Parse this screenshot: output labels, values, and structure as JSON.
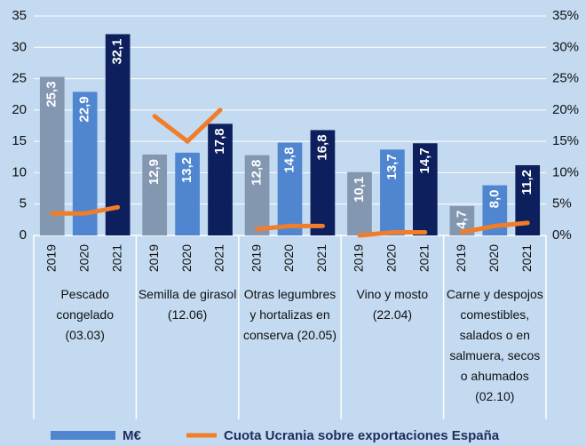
{
  "chart_data": {
    "type": "bar",
    "groups": [
      "Pescado congelado (03.03)",
      "Semilla de girasol (12.06)",
      "Otras legumbres y hortalizas en conserva (20.05)",
      "Vino y mosto (22.04)",
      "Carne y despojos comestibles, salados o en salmuera, secos o ahumados (02.10)"
    ],
    "categories": [
      "2019",
      "2020",
      "2021",
      "2019",
      "2020",
      "2021",
      "2019",
      "2020",
      "2021",
      "2019",
      "2020",
      "2021",
      "2019",
      "2020",
      "2021"
    ],
    "bar_colors": [
      "#8497b0",
      "#4f86cf",
      "#0d1f5c"
    ],
    "series": [
      {
        "name": "M€",
        "color": "#4f86cf",
        "values": [
          25.3,
          22.9,
          32.1,
          12.9,
          13.2,
          17.8,
          12.8,
          14.8,
          16.8,
          10.1,
          13.7,
          14.7,
          4.7,
          8.0,
          11.2
        ],
        "value_labels": [
          "25,3",
          "22,9",
          "32,1",
          "12,9",
          "13,2",
          "17,8",
          "12,8",
          "14,8",
          "16,8",
          "10,1",
          "13,7",
          "14,7",
          "4,7",
          "8,0",
          "11,2"
        ]
      },
      {
        "name": "Cuota Ucrania sobre exportaciones España",
        "color": "#f07d2a",
        "axis": "y2",
        "type": "line",
        "values": [
          3.5,
          3.5,
          4.5,
          19,
          15,
          20,
          1,
          1.5,
          1.5,
          0,
          0.5,
          0.5,
          0.5,
          1.5,
          2
        ]
      }
    ],
    "ylim": [
      0,
      35
    ],
    "yticks": [
      0,
      5,
      10,
      15,
      20,
      25,
      30,
      35
    ],
    "y2lim": [
      0,
      35
    ],
    "y2ticks": [
      {
        "value": 0,
        "label": "0%"
      },
      {
        "value": 5,
        "label": "5%"
      },
      {
        "value": 10,
        "label": "10%"
      },
      {
        "value": 15,
        "label": "15%"
      },
      {
        "value": 20,
        "label": "20%"
      },
      {
        "value": 25,
        "label": "25%"
      },
      {
        "value": 30,
        "label": "30%"
      },
      {
        "value": 35,
        "label": "35%"
      }
    ],
    "grid": true
  }
}
